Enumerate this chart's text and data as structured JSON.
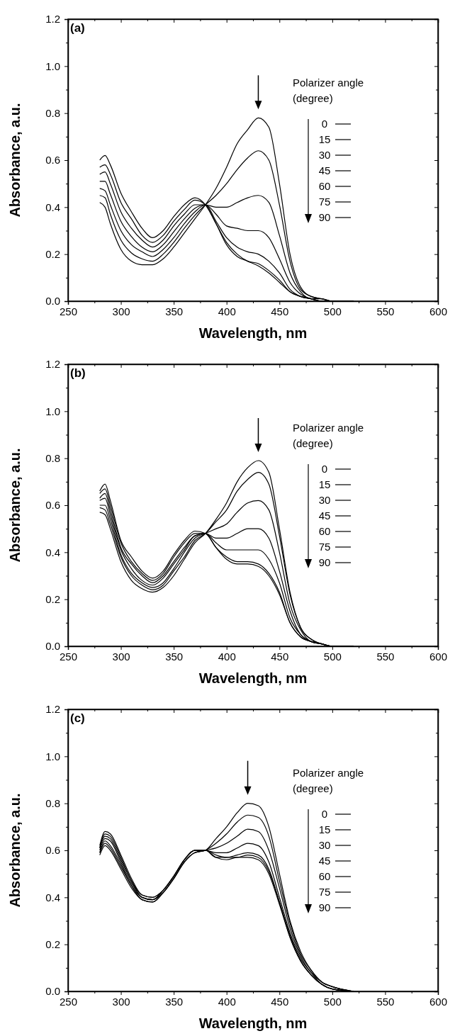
{
  "chart_data": [
    {
      "type": "line",
      "title": "(a)",
      "xlabel": "Wavelength, nm",
      "ylabel": "Absorbance, a.u.",
      "legend_title": "Polarizer angle (degree)",
      "legend": "right",
      "x": [
        280,
        285,
        290,
        300,
        310,
        320,
        330,
        340,
        350,
        360,
        370,
        380,
        390,
        400,
        410,
        420,
        430,
        440,
        450,
        460,
        470,
        480,
        490,
        500,
        520
      ],
      "xlim": [
        250,
        600
      ],
      "xticks": [
        250,
        {
          "value": 275,
          "label": null
        },
        300,
        {
          "value": 325,
          "label": null
        },
        350,
        {
          "value": 375,
          "label": null
        },
        400,
        {
          "value": 425,
          "label": null
        },
        450,
        {
          "value": 475,
          "label": null
        },
        500,
        {
          "value": 525,
          "label": null
        },
        550,
        {
          "value": 575,
          "label": null
        },
        600
      ],
      "ylim": [
        0,
        1.2
      ],
      "yticks": [
        {
          "value": 0,
          "label": "0.0"
        },
        {
          "value": 0.1,
          "label": null
        },
        {
          "value": 0.2,
          "label": "0.2"
        },
        {
          "value": 0.3,
          "label": null
        },
        {
          "value": 0.4,
          "label": "0.4"
        },
        {
          "value": 0.5,
          "label": null
        },
        {
          "value": 0.6,
          "label": "0.6"
        },
        {
          "value": 0.7,
          "label": null
        },
        {
          "value": 0.8,
          "label": "0.8"
        },
        {
          "value": 0.9,
          "label": null
        },
        {
          "value": 1.0,
          "label": "1.0"
        },
        {
          "value": 1.1,
          "label": null
        },
        {
          "value": 1.2,
          "label": "1.2"
        }
      ],
      "series": [
        {
          "name": "0",
          "color": "#000000",
          "values": [
            0.42,
            0.4,
            0.33,
            0.22,
            0.17,
            0.155,
            0.155,
            0.18,
            0.23,
            0.29,
            0.35,
            0.41,
            0.48,
            0.57,
            0.67,
            0.73,
            0.78,
            0.74,
            0.5,
            0.2,
            0.06,
            0.02,
            0.01,
            0,
            0
          ]
        },
        {
          "name": "15",
          "color": "#000000",
          "values": [
            0.45,
            0.44,
            0.37,
            0.26,
            0.205,
            0.18,
            0.17,
            0.2,
            0.25,
            0.31,
            0.365,
            0.41,
            0.45,
            0.5,
            0.56,
            0.61,
            0.64,
            0.6,
            0.41,
            0.17,
            0.05,
            0.02,
            0.01,
            0,
            0
          ]
        },
        {
          "name": "30",
          "color": "#000000",
          "values": [
            0.48,
            0.47,
            0.41,
            0.3,
            0.24,
            0.21,
            0.19,
            0.22,
            0.27,
            0.33,
            0.38,
            0.41,
            0.4,
            0.4,
            0.42,
            0.44,
            0.45,
            0.42,
            0.28,
            0.12,
            0.04,
            0.01,
            0.01,
            0,
            0
          ]
        },
        {
          "name": "45",
          "color": "#000000",
          "values": [
            0.51,
            0.51,
            0.455,
            0.34,
            0.275,
            0.23,
            0.21,
            0.24,
            0.295,
            0.35,
            0.395,
            0.41,
            0.37,
            0.32,
            0.31,
            0.3,
            0.3,
            0.27,
            0.18,
            0.08,
            0.03,
            0.01,
            0,
            0,
            0
          ]
        },
        {
          "name": "60",
          "color": "#000000",
          "values": [
            0.54,
            0.55,
            0.5,
            0.38,
            0.31,
            0.26,
            0.23,
            0.26,
            0.32,
            0.37,
            0.41,
            0.41,
            0.34,
            0.27,
            0.23,
            0.21,
            0.2,
            0.17,
            0.12,
            0.05,
            0.02,
            0.01,
            0,
            0,
            0
          ]
        },
        {
          "name": "75",
          "color": "#000000",
          "values": [
            0.57,
            0.58,
            0.54,
            0.42,
            0.35,
            0.28,
            0.25,
            0.28,
            0.34,
            0.39,
            0.43,
            0.41,
            0.33,
            0.25,
            0.2,
            0.17,
            0.16,
            0.13,
            0.09,
            0.04,
            0.02,
            0.01,
            0,
            0,
            0
          ]
        },
        {
          "name": "90",
          "color": "#000000",
          "values": [
            0.6,
            0.62,
            0.58,
            0.46,
            0.38,
            0.31,
            0.27,
            0.3,
            0.36,
            0.41,
            0.44,
            0.41,
            0.33,
            0.24,
            0.19,
            0.17,
            0.15,
            0.12,
            0.08,
            0.04,
            0.02,
            0.01,
            0,
            0,
            0
          ]
        }
      ]
    },
    {
      "type": "line",
      "title": "(b)",
      "xlabel": "Wavelength, nm",
      "ylabel": "Absorbance, a.u.",
      "legend_title": "Polarizer angle (degree)",
      "legend": "right",
      "x": [
        280,
        285,
        290,
        300,
        310,
        320,
        330,
        340,
        350,
        360,
        370,
        380,
        390,
        400,
        410,
        420,
        430,
        440,
        450,
        460,
        470,
        480,
        490,
        500,
        520
      ],
      "xlim": [
        250,
        600
      ],
      "xticks": [
        250,
        {
          "value": 275,
          "label": null
        },
        300,
        {
          "value": 325,
          "label": null
        },
        350,
        {
          "value": 375,
          "label": null
        },
        400,
        {
          "value": 425,
          "label": null
        },
        450,
        {
          "value": 475,
          "label": null
        },
        500,
        {
          "value": 525,
          "label": null
        },
        550,
        {
          "value": 575,
          "label": null
        },
        600
      ],
      "ylim": [
        0,
        1.2
      ],
      "yticks": [
        {
          "value": 0,
          "label": "0.0"
        },
        {
          "value": 0.1,
          "label": null
        },
        {
          "value": 0.2,
          "label": "0.2"
        },
        {
          "value": 0.3,
          "label": null
        },
        {
          "value": 0.4,
          "label": "0.4"
        },
        {
          "value": 0.5,
          "label": null
        },
        {
          "value": 0.6,
          "label": "0.6"
        },
        {
          "value": 0.7,
          "label": null
        },
        {
          "value": 0.8,
          "label": "0.8"
        },
        {
          "value": 0.9,
          "label": null
        },
        {
          "value": 1.0,
          "label": "1.0"
        },
        {
          "value": 1.1,
          "label": null
        },
        {
          "value": 1.2,
          "label": "1.2"
        }
      ],
      "series": [
        {
          "name": "0",
          "color": "#000000",
          "values": [
            0.57,
            0.56,
            0.5,
            0.36,
            0.28,
            0.245,
            0.23,
            0.25,
            0.3,
            0.37,
            0.44,
            0.48,
            0.54,
            0.61,
            0.7,
            0.76,
            0.79,
            0.74,
            0.5,
            0.23,
            0.08,
            0.03,
            0.01,
            0,
            0
          ]
        },
        {
          "name": "15",
          "color": "#000000",
          "values": [
            0.59,
            0.58,
            0.52,
            0.38,
            0.3,
            0.26,
            0.24,
            0.26,
            0.32,
            0.38,
            0.45,
            0.48,
            0.53,
            0.58,
            0.66,
            0.71,
            0.74,
            0.69,
            0.47,
            0.22,
            0.08,
            0.03,
            0.01,
            0,
            0
          ]
        },
        {
          "name": "30",
          "color": "#000000",
          "values": [
            0.6,
            0.6,
            0.54,
            0.39,
            0.31,
            0.27,
            0.25,
            0.27,
            0.33,
            0.4,
            0.46,
            0.48,
            0.5,
            0.52,
            0.57,
            0.61,
            0.62,
            0.58,
            0.4,
            0.18,
            0.07,
            0.02,
            0.01,
            0,
            0
          ]
        },
        {
          "name": "45",
          "color": "#000000",
          "values": [
            0.62,
            0.63,
            0.56,
            0.41,
            0.33,
            0.28,
            0.26,
            0.29,
            0.35,
            0.41,
            0.47,
            0.48,
            0.46,
            0.46,
            0.48,
            0.5,
            0.5,
            0.46,
            0.32,
            0.15,
            0.05,
            0.02,
            0.01,
            0,
            0
          ]
        },
        {
          "name": "60",
          "color": "#000000",
          "values": [
            0.63,
            0.65,
            0.58,
            0.42,
            0.35,
            0.3,
            0.27,
            0.3,
            0.36,
            0.42,
            0.47,
            0.48,
            0.44,
            0.41,
            0.41,
            0.41,
            0.41,
            0.37,
            0.27,
            0.12,
            0.05,
            0.02,
            0.01,
            0,
            0
          ]
        },
        {
          "name": "75",
          "color": "#000000",
          "values": [
            0.65,
            0.67,
            0.6,
            0.44,
            0.36,
            0.31,
            0.28,
            0.31,
            0.38,
            0.44,
            0.48,
            0.48,
            0.42,
            0.38,
            0.36,
            0.36,
            0.35,
            0.31,
            0.23,
            0.1,
            0.04,
            0.02,
            0.01,
            0,
            0
          ]
        },
        {
          "name": "90",
          "color": "#000000",
          "values": [
            0.66,
            0.69,
            0.62,
            0.45,
            0.38,
            0.32,
            0.29,
            0.32,
            0.39,
            0.45,
            0.49,
            0.48,
            0.42,
            0.37,
            0.35,
            0.35,
            0.34,
            0.3,
            0.22,
            0.1,
            0.04,
            0.02,
            0.01,
            0,
            0
          ]
        }
      ]
    },
    {
      "type": "line",
      "title": "(c)",
      "xlabel": "Wavelength, nm",
      "ylabel": "Absorbance, a.u.",
      "legend_title": "Polarizer angle (degree)",
      "legend": "right",
      "x": [
        280,
        285,
        290,
        300,
        310,
        320,
        330,
        340,
        350,
        360,
        370,
        380,
        390,
        400,
        410,
        420,
        430,
        440,
        450,
        460,
        470,
        480,
        490,
        500,
        520
      ],
      "xlim": [
        250,
        600
      ],
      "xticks": [
        250,
        {
          "value": 275,
          "label": null
        },
        300,
        {
          "value": 325,
          "label": null
        },
        350,
        {
          "value": 375,
          "label": null
        },
        400,
        {
          "value": 425,
          "label": null
        },
        450,
        {
          "value": 475,
          "label": null
        },
        500,
        {
          "value": 525,
          "label": null
        },
        550,
        {
          "value": 575,
          "label": null
        },
        600
      ],
      "ylim": [
        0,
        1.2
      ],
      "yticks": [
        {
          "value": 0,
          "label": "0.0"
        },
        {
          "value": 0.1,
          "label": null
        },
        {
          "value": 0.2,
          "label": "0.2"
        },
        {
          "value": 0.3,
          "label": null
        },
        {
          "value": 0.4,
          "label": "0.4"
        },
        {
          "value": 0.5,
          "label": null
        },
        {
          "value": 0.6,
          "label": "0.6"
        },
        {
          "value": 0.7,
          "label": null
        },
        {
          "value": 0.8,
          "label": "0.8"
        },
        {
          "value": 0.9,
          "label": null
        },
        {
          "value": 1.0,
          "label": "1.0"
        },
        {
          "value": 1.1,
          "label": null
        },
        {
          "value": 1.2,
          "label": "1.2"
        }
      ],
      "series": [
        {
          "name": "0",
          "color": "#000000",
          "values": [
            0.58,
            0.62,
            0.6,
            0.52,
            0.44,
            0.39,
            0.38,
            0.42,
            0.48,
            0.55,
            0.59,
            0.6,
            0.65,
            0.7,
            0.76,
            0.8,
            0.79,
            0.7,
            0.5,
            0.3,
            0.17,
            0.09,
            0.04,
            0.02,
            0
          ]
        },
        {
          "name": "15",
          "color": "#000000",
          "values": [
            0.59,
            0.63,
            0.61,
            0.53,
            0.45,
            0.39,
            0.38,
            0.42,
            0.48,
            0.55,
            0.59,
            0.6,
            0.63,
            0.67,
            0.72,
            0.75,
            0.74,
            0.66,
            0.47,
            0.29,
            0.16,
            0.09,
            0.04,
            0.02,
            0
          ]
        },
        {
          "name": "30",
          "color": "#000000",
          "values": [
            0.59,
            0.64,
            0.62,
            0.54,
            0.45,
            0.4,
            0.39,
            0.42,
            0.48,
            0.55,
            0.59,
            0.6,
            0.61,
            0.63,
            0.66,
            0.69,
            0.68,
            0.6,
            0.44,
            0.27,
            0.15,
            0.08,
            0.04,
            0.02,
            0
          ]
        },
        {
          "name": "45",
          "color": "#000000",
          "values": [
            0.6,
            0.65,
            0.64,
            0.55,
            0.46,
            0.4,
            0.39,
            0.43,
            0.49,
            0.56,
            0.6,
            0.6,
            0.59,
            0.59,
            0.61,
            0.63,
            0.62,
            0.55,
            0.4,
            0.25,
            0.14,
            0.08,
            0.03,
            0.01,
            0
          ]
        },
        {
          "name": "60",
          "color": "#000000",
          "values": [
            0.61,
            0.66,
            0.65,
            0.56,
            0.47,
            0.4,
            0.39,
            0.43,
            0.49,
            0.56,
            0.6,
            0.6,
            0.58,
            0.57,
            0.58,
            0.59,
            0.58,
            0.52,
            0.38,
            0.24,
            0.13,
            0.07,
            0.03,
            0.01,
            0
          ]
        },
        {
          "name": "75",
          "color": "#000000",
          "values": [
            0.61,
            0.67,
            0.66,
            0.57,
            0.47,
            0.41,
            0.4,
            0.43,
            0.49,
            0.56,
            0.6,
            0.6,
            0.57,
            0.57,
            0.57,
            0.58,
            0.57,
            0.51,
            0.38,
            0.23,
            0.13,
            0.07,
            0.03,
            0.01,
            0
          ]
        },
        {
          "name": "90",
          "color": "#000000",
          "values": [
            0.62,
            0.68,
            0.67,
            0.58,
            0.48,
            0.41,
            0.4,
            0.43,
            0.49,
            0.56,
            0.6,
            0.6,
            0.57,
            0.56,
            0.57,
            0.57,
            0.56,
            0.5,
            0.37,
            0.23,
            0.13,
            0.07,
            0.03,
            0.01,
            0
          ]
        }
      ]
    }
  ]
}
